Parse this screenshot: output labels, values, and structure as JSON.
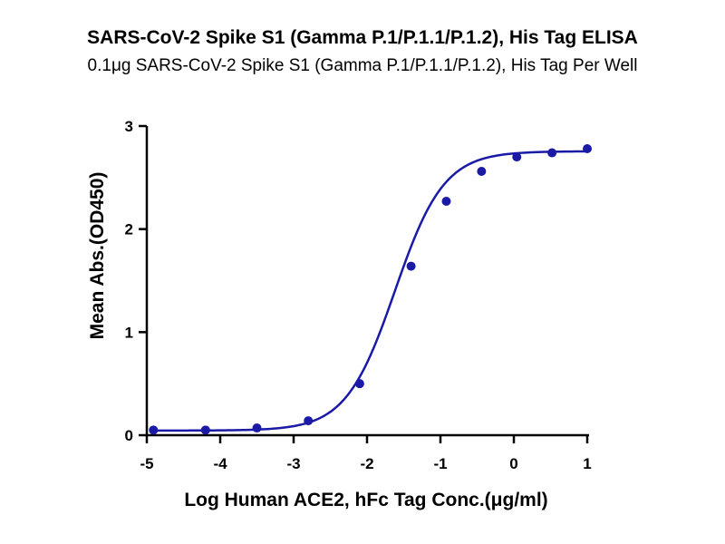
{
  "chart_data": {
    "type": "scatter",
    "title": "SARS-CoV-2 Spike S1 (Gamma P.1/P.1.1/P.1.2), His Tag ELISA",
    "subtitle": "0.1μg SARS-CoV-2 Spike S1 (Gamma P.1/P.1.1/P.1.2), His Tag Per Well",
    "xlabel": "Log Human ACE2, hFc Tag Conc.(μg/ml)",
    "ylabel": "Mean Abs.(OD450)",
    "xlim": [
      -5,
      1
    ],
    "ylim": [
      0,
      3
    ],
    "x_ticks": [
      -5,
      -4,
      -3,
      -2,
      -1,
      0,
      1
    ],
    "y_ticks": [
      0,
      1,
      2,
      3
    ],
    "x_tick_labels": [
      "-5",
      "-4",
      "-3",
      "-2",
      "-1",
      "0",
      "1"
    ],
    "y_tick_labels": [
      "0",
      "1",
      "2",
      "3"
    ],
    "grid": false,
    "legend": "none",
    "series": [
      {
        "x": [
          -4.91,
          -4.2,
          -3.5,
          -2.8,
          -2.1,
          -1.4,
          -0.92,
          -0.44,
          0.04,
          0.52,
          1.0
        ],
        "y": [
          0.05,
          0.05,
          0.07,
          0.14,
          0.5,
          1.64,
          2.27,
          2.56,
          2.7,
          2.74,
          2.78
        ],
        "fit": "four-parameter logistic",
        "color": "#1a1aa6"
      }
    ]
  }
}
